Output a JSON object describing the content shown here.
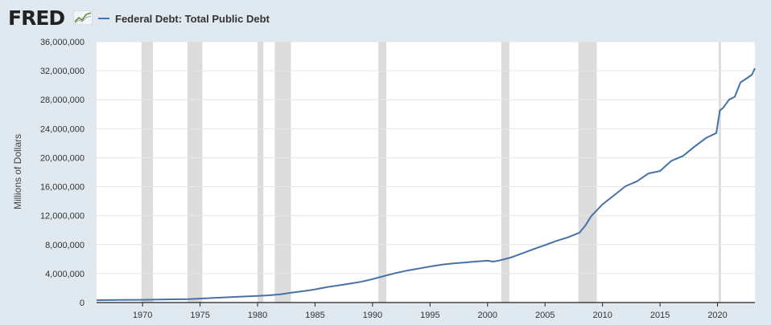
{
  "header": {
    "logo_text": "FRED",
    "legend_label": "Federal Debt: Total Public Debt"
  },
  "colors": {
    "series": "#4572a7",
    "recession": "#dcdcdc",
    "plot_bg": "#ffffff",
    "page_bg": "#e1e9f0"
  },
  "icons": {
    "logo": "trend-line-icon"
  },
  "chart_data": {
    "type": "line",
    "title": "",
    "xlabel": "",
    "ylabel": "Millions of Dollars",
    "xlim": [
      1966,
      2023.25
    ],
    "ylim": [
      0,
      36000000
    ],
    "grid": true,
    "legend": "top-left",
    "x_ticks": [
      1970,
      1975,
      1980,
      1985,
      1990,
      1995,
      2000,
      2005,
      2010,
      2015,
      2020
    ],
    "x_tick_labels": [
      "1970",
      "1975",
      "1980",
      "1985",
      "1990",
      "1995",
      "2000",
      "2005",
      "2010",
      "2015",
      "2020"
    ],
    "y_ticks": [
      0,
      4000000,
      8000000,
      12000000,
      16000000,
      20000000,
      24000000,
      28000000,
      32000000,
      36000000
    ],
    "y_tick_labels": [
      "0",
      "4,000,000",
      "8,000,000",
      "12,000,000",
      "16,000,000",
      "20,000,000",
      "24,000,000",
      "28,000,000",
      "32,000,000",
      "36,000,000"
    ],
    "recessions": [
      [
        1969.9,
        1970.9
      ],
      [
        1973.9,
        1975.2
      ],
      [
        1980.0,
        1980.5
      ],
      [
        1981.5,
        1982.9
      ],
      [
        1990.5,
        1991.2
      ],
      [
        2001.2,
        2001.9
      ],
      [
        2007.9,
        2009.5
      ],
      [
        2020.1,
        2020.3
      ]
    ],
    "series": [
      {
        "name": "Federal Debt: Total Public Debt",
        "x": [
          1966,
          1968,
          1970,
          1972,
          1974,
          1975,
          1976,
          1978,
          1980,
          1981,
          1982,
          1983,
          1984,
          1985,
          1986,
          1987,
          1988,
          1989,
          1990,
          1991,
          1992,
          1993,
          1994,
          1995,
          1996,
          1997,
          1998,
          1999,
          2000,
          2000.5,
          2001,
          2002,
          2003,
          2004,
          2005,
          2006,
          2007,
          2008,
          2008.5,
          2009,
          2010,
          2011,
          2012,
          2013,
          2014,
          2015,
          2016,
          2017,
          2018,
          2019,
          2019.9,
          2020.2,
          2020.5,
          2021,
          2021.5,
          2022,
          2022.5,
          2023,
          2023.25
        ],
        "values": [
          320000,
          350000,
          380000,
          430000,
          480000,
          540000,
          620000,
          770000,
          910000,
          1000000,
          1140000,
          1370000,
          1570000,
          1820000,
          2120000,
          2350000,
          2600000,
          2860000,
          3230000,
          3660000,
          4060000,
          4410000,
          4690000,
          4970000,
          5220000,
          5410000,
          5530000,
          5660000,
          5770000,
          5650000,
          5790000,
          6200000,
          6780000,
          7380000,
          7930000,
          8510000,
          9010000,
          9650000,
          10600000,
          11900000,
          13560000,
          14800000,
          16060000,
          16740000,
          17820000,
          18150000,
          19570000,
          20240000,
          21520000,
          22720000,
          23400000,
          26500000,
          26900000,
          28000000,
          28400000,
          30400000,
          30900000,
          31460000,
          32330000
        ]
      }
    ]
  }
}
